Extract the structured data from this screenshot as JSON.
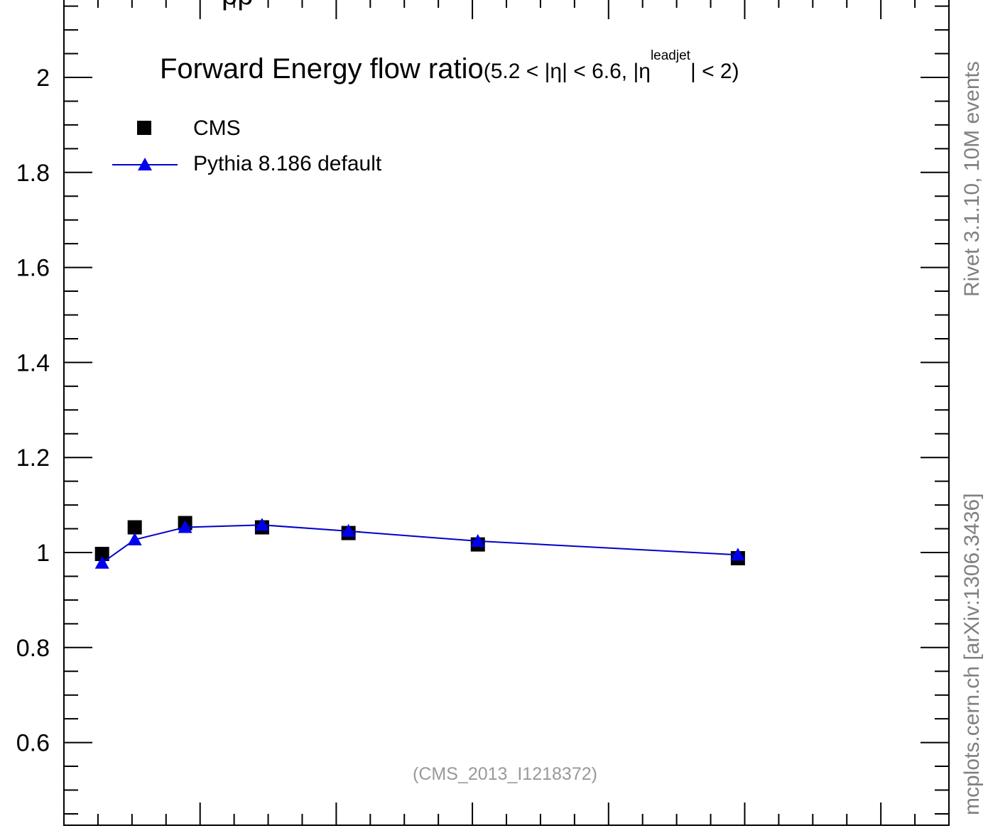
{
  "colors": {
    "data_marker": "#000000",
    "mc_line": "#0000cc",
    "mc_marker": "#0000ee",
    "side_text": "#808080",
    "analysis_text": "#999999"
  },
  "chart_data": {
    "type": "scatter",
    "title": "Forward Energy flow ratio",
    "title_cut_prefix": "(5.2 < |η| < 6.6, |η",
    "title_cut_sup": "leadjet",
    "title_cut_suffix": "| < 2)",
    "xlabel": "",
    "ylabel": "",
    "xlim": [
      0,
      1.3
    ],
    "ylim": [
      0.43,
      2.15
    ],
    "yticks": [
      0.6,
      0.8,
      1,
      1.2,
      1.4,
      1.6,
      1.8,
      2
    ],
    "ytick_labels": [
      "0.6",
      "0.8",
      "1",
      "1.2",
      "1.4",
      "1.6",
      "1.8",
      "2"
    ],
    "grid": false,
    "legend_position": "top-left",
    "series": [
      {
        "name": "CMS",
        "marker": "square",
        "x": [
          0.056,
          0.104,
          0.178,
          0.291,
          0.418,
          0.608,
          0.99
        ],
        "y": [
          0.997,
          1.053,
          1.062,
          1.053,
          1.041,
          1.017,
          0.988
        ]
      },
      {
        "name": "Pythia 8.186 default",
        "marker": "triangle",
        "line": true,
        "x": [
          0.056,
          0.104,
          0.178,
          0.291,
          0.418,
          0.608,
          0.99
        ],
        "y": [
          0.978,
          1.027,
          1.053,
          1.058,
          1.045,
          1.024,
          0.995
        ],
        "yerr": [
          0.004,
          0.004,
          0.004,
          0.004,
          0.005,
          0.006,
          0.012
        ]
      }
    ],
    "annotations": {
      "analysis_id": "(CMS_2013_I1218372)",
      "side_right": "mcplots.cern.ch [arXiv:1306.3436]",
      "side_top": "Rivet 3.1.10,  10M events"
    }
  }
}
